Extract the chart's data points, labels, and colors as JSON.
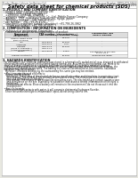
{
  "bg_color": "#e8e8e0",
  "page_bg": "#ffffff",
  "title": "Safety data sheet for chemical products (SDS)",
  "header_left": "Product Name: Lithium Ion Battery Cell",
  "header_right_1": "Reference Number: BSMS-SDS-006-E",
  "header_right_2": "Established / Revision: Dec.7.2016",
  "section1_title": "1. PRODUCT AND COMPANY IDENTIFICATION",
  "section1_lines": [
    " • Product name: Lithium Ion Battery Cell",
    " • Product code: Cylindrical-type cell",
    "     (18650SU, 18650SA, 18650SA)",
    " • Company name:   Sanyo Electric Co., Ltd., Mobile Energy Company",
    " • Address:   2001, Kamosaka, Sumoto City, Hyogo, Japan",
    " • Telephone number:   +81-799-26-4111",
    " • Fax number:   +81-799-26-4120",
    " • Emergency telephone number (Weekday): +81-799-26-3962",
    "     (Night and holiday): +81-799-26-4101"
  ],
  "section2_title": "2. COMPOSITION / INFORMATION ON INGREDIENTS",
  "section2_line1": " • Substance or preparation: Preparation",
  "section2_line2": "   • Information about the chemical nature of product:",
  "table_h1": "Component",
  "table_h1b": "General name",
  "table_h2": "CAS number",
  "table_h3a": "Concentration /",
  "table_h3b": "Concentration range",
  "table_h4a": "Classification and",
  "table_h4b": "hazard labeling",
  "table_rows": [
    [
      "Lithium cobalt oxide",
      "-",
      "30-60%",
      "-"
    ],
    [
      "(LiMn-Co-NiO2)",
      "",
      "",
      ""
    ],
    [
      "Iron",
      "7439-89-6",
      "10-20%",
      "-"
    ],
    [
      "Aluminum",
      "7429-90-5",
      "2-5%",
      "-"
    ],
    [
      "Graphite",
      "7782-42-5",
      "10-25%",
      "-"
    ],
    [
      "(Flake or graphite-I)",
      "7782-44-0",
      "",
      ""
    ],
    [
      "(Artificial graphite-I)",
      "",
      "",
      ""
    ],
    [
      "Copper",
      "7440-50-8",
      "5-15%",
      "Sensitization of the skin"
    ],
    [
      "",
      "",
      "",
      "group No.2"
    ],
    [
      "Organic electrolyte",
      "-",
      "10-20%",
      "Inflammable liquid"
    ]
  ],
  "section3_title": "3. HAZARDS IDENTIFICATION",
  "section3_text": [
    "  For the battery cell, chemical substances are stored in a hermetically sealed metal case, designed to withstand",
    "  temperatures and pressures encountered during normal use. As a result, during normal use, there is no",
    "  physical danger of ignition or explosion and there is no danger of hazardous materials leakage.",
    "    However, if exposed to a fire, added mechanical shocks, decomposed, when electrolyte releases, the",
    "  the gas inside cannot be operated. The battery cell case will be breached at the extreme, hazardous",
    "  materials may be released.",
    "    Moreover, if heated strongly by the surrounding fire, some gas may be emitted.",
    "",
    "  • Most important hazard and effects:",
    "    Human health effects:",
    "      Inhalation: The release of the electrolyte has an anesthesia action and stimulates in respiratory tract.",
    "      Skin contact: The release of the electrolyte stimulates a skin. The electrolyte skin contact causes a",
    "      sore and stimulation on the skin.",
    "      Eye contact: The release of the electrolyte stimulates eyes. The electrolyte eye contact causes a sore",
    "      and stimulation on the eye. Especially, a substance that causes a strong inflammation of the eyes is",
    "      contained.",
    "      Environmental effects: Since a battery cell remains in the environment, do not throw out it into the",
    "      environment.",
    "",
    "  • Specific hazards:",
    "    If the electrolyte contacts with water, it will generate detrimental hydrogen fluoride.",
    "    Since the used electrolyte is inflammable liquid, do not bring close to fire."
  ],
  "text_color": "#111111",
  "line_color": "#999999",
  "table_border_color": "#aaaaaa",
  "title_color": "#000000",
  "header_text_color": "#444444"
}
